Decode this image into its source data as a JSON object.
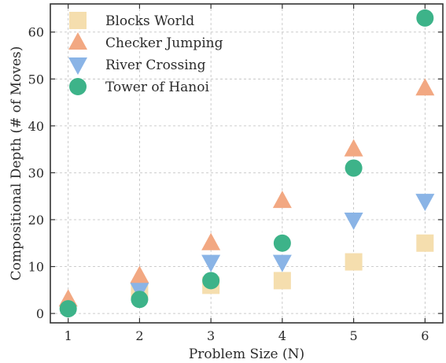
{
  "chart_data": {
    "type": "scatter",
    "title": "",
    "xlabel": "Problem Size (N)",
    "ylabel": "Compositional Depth (# of Moves)",
    "x_ticks": [
      1,
      2,
      3,
      4,
      5,
      6
    ],
    "y_ticks": [
      0,
      10,
      20,
      30,
      40,
      50,
      60
    ],
    "xlim": [
      0.75,
      6.25
    ],
    "ylim": [
      -2,
      66
    ],
    "grid": true,
    "legend_position": "top-left",
    "series": [
      {
        "name": "Blocks World",
        "marker": "square",
        "color": "#f5deae",
        "x": [
          2,
          3,
          4,
          5,
          6
        ],
        "y": [
          5,
          6,
          7,
          11,
          15
        ]
      },
      {
        "name": "Checker Jumping",
        "marker": "triangle-up",
        "color": "#f2a882",
        "x": [
          1,
          2,
          3,
          4,
          5,
          6
        ],
        "y": [
          3,
          8,
          15,
          24,
          35,
          48
        ]
      },
      {
        "name": "River Crossing",
        "marker": "triangle-down",
        "color": "#8ab4e6",
        "x": [
          2,
          3,
          4,
          5,
          6
        ],
        "y": [
          5,
          11,
          11,
          20,
          24
        ]
      },
      {
        "name": "Tower of Hanoi",
        "marker": "circle",
        "color": "#3db389",
        "x": [
          1,
          2,
          3,
          4,
          5,
          6
        ],
        "y": [
          1,
          3,
          7,
          15,
          31,
          63
        ]
      }
    ]
  }
}
